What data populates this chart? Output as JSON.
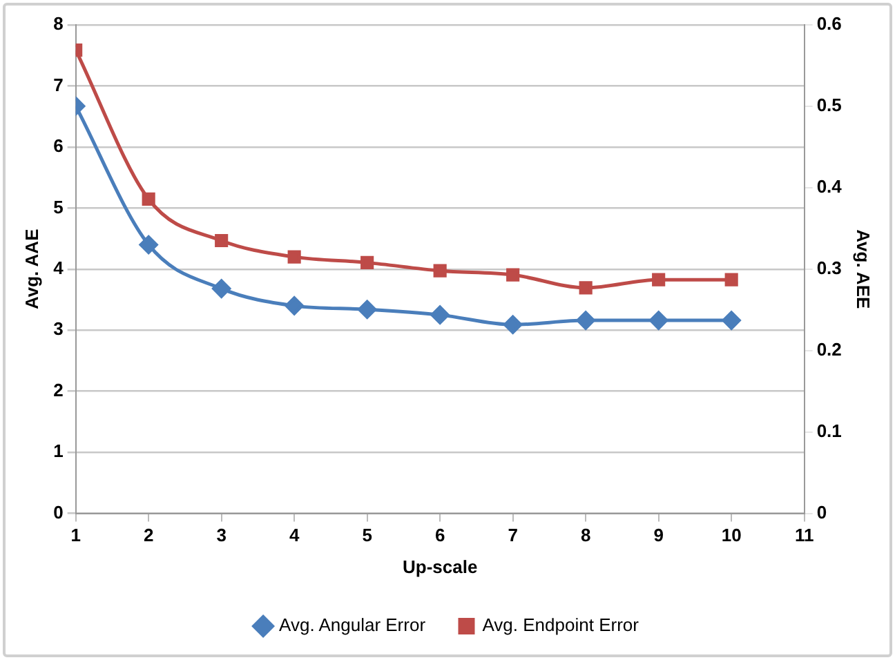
{
  "chart_data": {
    "type": "line",
    "xlabel": "Up-scale",
    "ylabel": "Avg. AAE",
    "y2label": "Avg. AEE",
    "x": [
      1,
      2,
      3,
      4,
      5,
      6,
      7,
      8,
      9,
      10
    ],
    "series": [
      {
        "name": "Avg. Angular Error",
        "color": "#4a7ebb",
        "marker": "diamond",
        "values": [
          6.67,
          4.4,
          3.68,
          3.4,
          3.34,
          3.25,
          3.09,
          3.16,
          3.16,
          3.16
        ]
      },
      {
        "name": "Avg. Endpoint Error",
        "color": "#be4b48",
        "marker": "square",
        "axis": "y2",
        "values": [
          0.569,
          0.386,
          0.335,
          0.315,
          0.308,
          0.298,
          0.293,
          0.277,
          0.287,
          0.287
        ]
      }
    ],
    "xlim": [
      1,
      11
    ],
    "xticks": [
      1,
      2,
      3,
      4,
      5,
      6,
      7,
      8,
      9,
      10,
      11
    ],
    "ylim": [
      0,
      8
    ],
    "yticks": [
      0,
      1,
      2,
      3,
      4,
      5,
      6,
      7,
      8
    ],
    "y2lim": [
      0,
      0.6
    ],
    "y2ticks": [
      0,
      0.1,
      0.2,
      0.3,
      0.4,
      0.5,
      0.6
    ],
    "grid": "y",
    "legend": "bottom",
    "line_style": "solid"
  }
}
